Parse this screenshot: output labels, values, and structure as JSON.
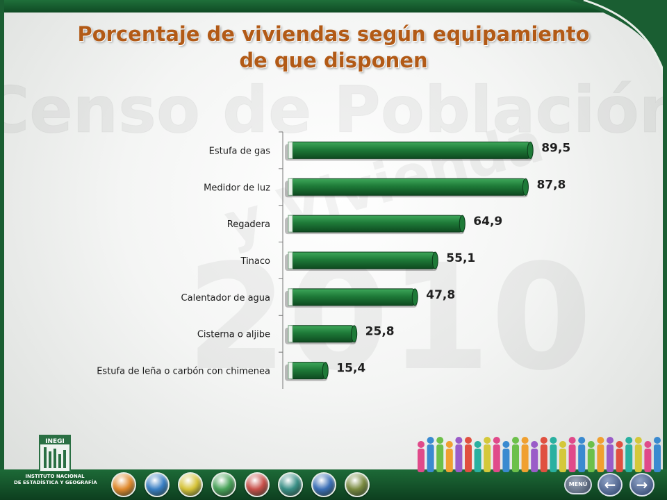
{
  "title": {
    "line1": "Porcentaje de viviendas según equipamiento",
    "line2": "de que disponen"
  },
  "watermark": {
    "line1": "Censo de Población",
    "line2": "y Vivienda",
    "year": "2010"
  },
  "colors": {
    "title": "#b25a16",
    "bar": "#1e7a38",
    "bar_highlight": "#3ea85a",
    "bar_shadow": "#0e4a20",
    "frame": "#1a5e32",
    "axis": "#777777"
  },
  "chart_data": {
    "type": "bar",
    "orientation": "horizontal",
    "categories": [
      "Estufa de gas",
      "Medidor de luz",
      "Regadera",
      "Tinaco",
      "Calentador de agua",
      "Cisterna o aljibe",
      "Estufa de leña o carbón con chimenea"
    ],
    "values": [
      89.5,
      87.8,
      64.9,
      55.1,
      47.8,
      25.8,
      15.4
    ],
    "value_labels": [
      "89,5",
      "87,8",
      "64,9",
      "55,1",
      "47,8",
      "25,8",
      "15,4"
    ],
    "xlim": [
      0,
      100
    ],
    "grid": false,
    "legend": "none"
  },
  "footer": {
    "logo_name": "INEGI",
    "logo_line1": "INSTITUTO NACIONAL",
    "logo_line2": "DE ESTADÍSTICA Y GEOGRAFÍA",
    "nav_icons": [
      {
        "name": "people-icon",
        "color": "#e08a2e"
      },
      {
        "name": "info-icon",
        "color": "#3a7fc4"
      },
      {
        "name": "family-icon",
        "color": "#d6c33a"
      },
      {
        "name": "persons-icon",
        "color": "#4aa35a"
      },
      {
        "name": "home-icon",
        "color": "#c8504a"
      },
      {
        "name": "house-icon",
        "color": "#3a8f86"
      },
      {
        "name": "migration-icon",
        "color": "#3b6fb6"
      },
      {
        "name": "gallery-icon",
        "color": "#7a8a40"
      }
    ],
    "menu_label": "MENÚ",
    "prev_icon": "←",
    "next_icon": "→"
  }
}
